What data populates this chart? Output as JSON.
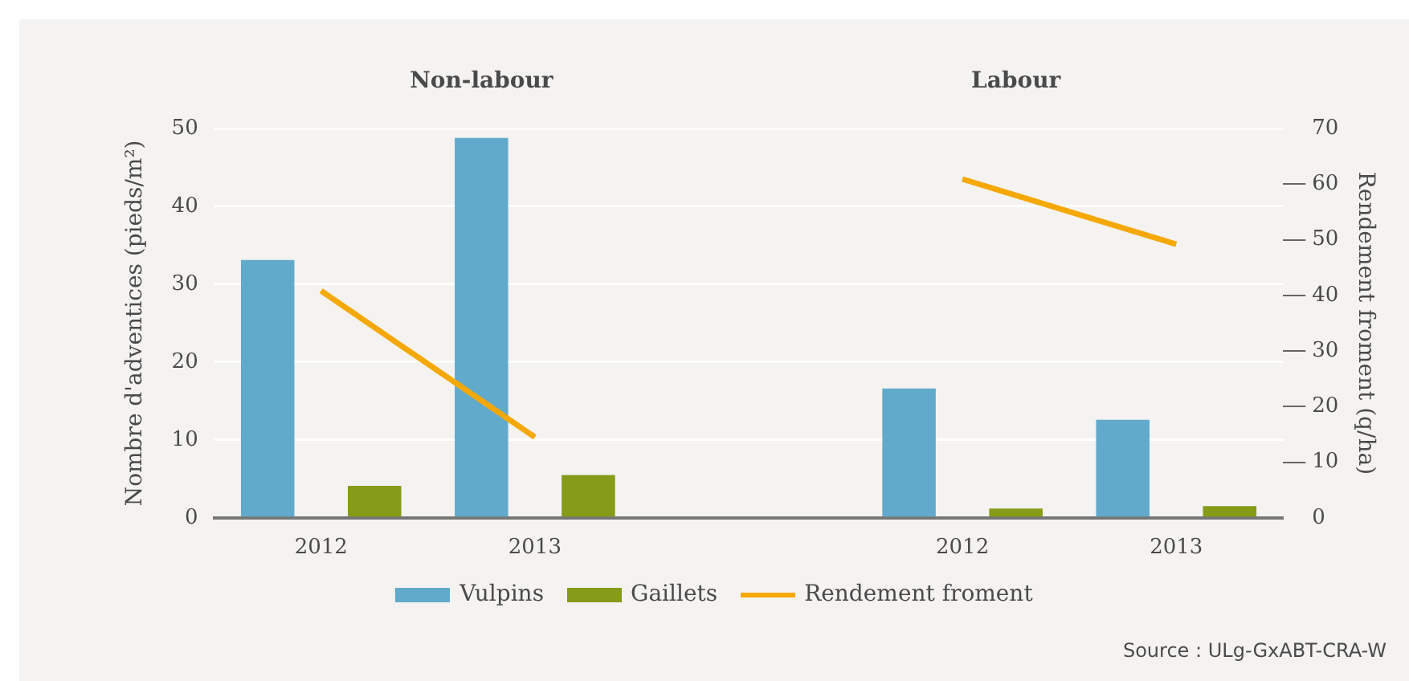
{
  "chart_data": {
    "type": "bar",
    "ylabel": "Nombre d'adventices (pieds/m²)",
    "y2label": "Rendement froment (q/ha)",
    "categories": [
      "2012",
      "2013",
      null,
      "2012",
      "2013"
    ],
    "ylim": [
      0,
      50
    ],
    "yticks": [
      0,
      10,
      20,
      30,
      40,
      50
    ],
    "y2lim": [
      0,
      70
    ],
    "y2ticks": [
      0,
      10,
      20,
      30,
      40,
      50,
      60,
      70
    ],
    "grid": "y",
    "legend": "bottom",
    "annotations": [
      "Non-labour",
      "Labour",
      "Source : ULg-GxABT-CRA-W"
    ],
    "series": [
      {
        "name": "Vulpins",
        "color": "#62aacb",
        "values": [
          33.1,
          48.8,
          null,
          16.6,
          12.6
        ]
      },
      {
        "name": "Gaillets",
        "color": "#869b17",
        "values": [
          4.1,
          5.5,
          null,
          1.2,
          1.5
        ]
      },
      {
        "name": "Rendement froment",
        "type": "line",
        "axis": "y2",
        "color": "#f5a800",
        "values": [
          40.8,
          14.5,
          null,
          null,
          null
        ]
      },
      {
        "type": "line",
        "axis": "y2",
        "color": "#f5a800",
        "values": [
          null,
          null,
          null,
          60.9,
          49.2
        ]
      }
    ]
  }
}
